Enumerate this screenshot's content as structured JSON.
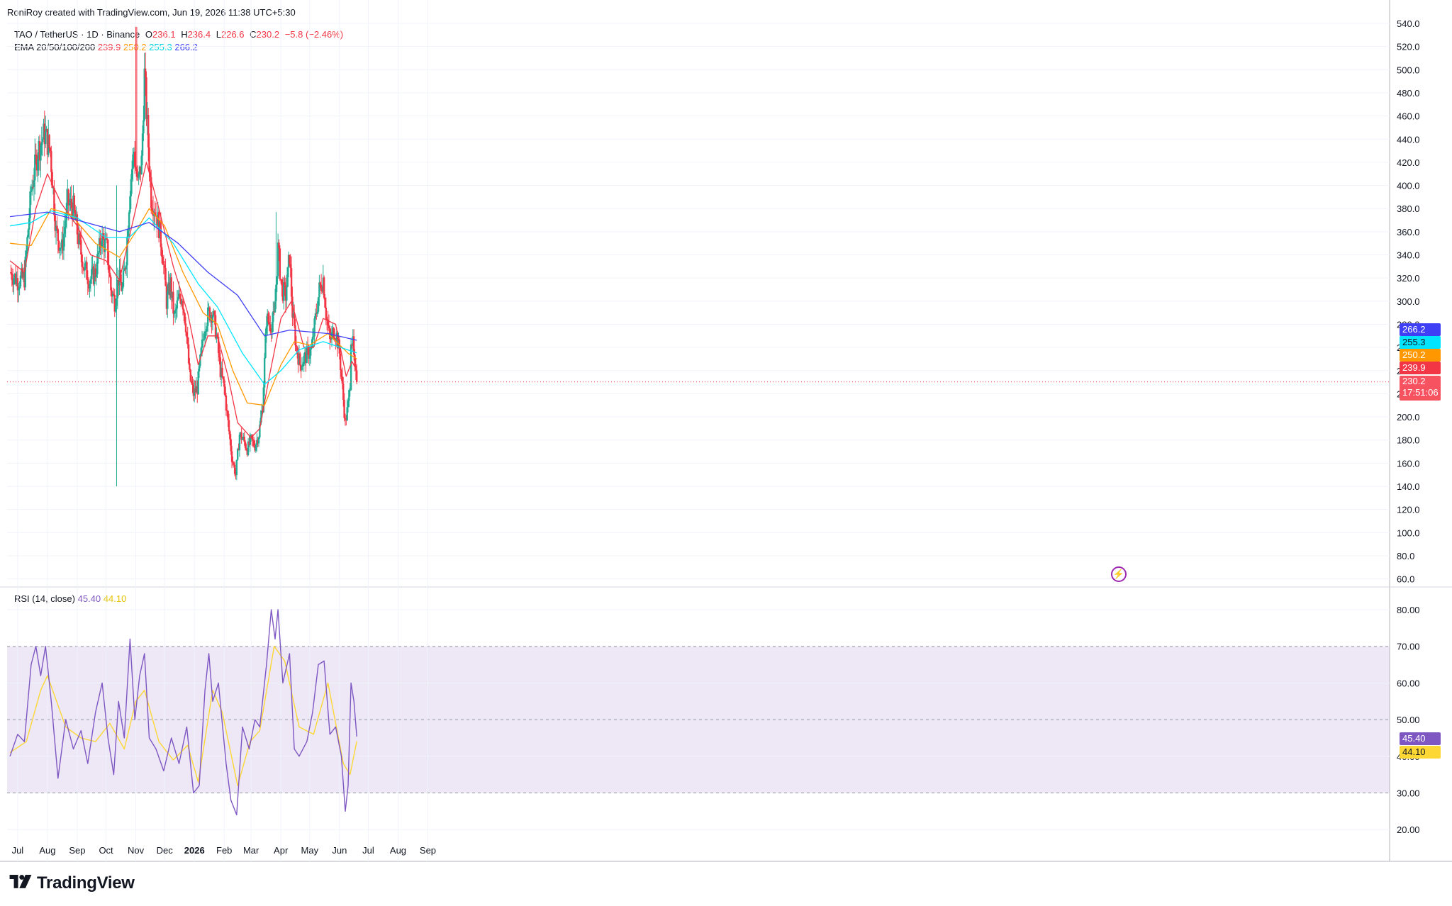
{
  "header": {
    "text": "RoniRoy created with TradingView.com, Jun 19, 2026 11:38 UTC+5:30"
  },
  "legend": {
    "symbol": "TAO / TetherUS · 1D · Binance",
    "open_label": "O",
    "open": "236.1",
    "high_label": "H",
    "high": "236.4",
    "low_label": "L",
    "low": "226.6",
    "close_label": "C",
    "close": "230.2",
    "change": "−5.8 (−2.46%)",
    "ema_title": "EMA 20/50/100/200",
    "ema20": "239.9",
    "ema50": "250.2",
    "ema100": "255.3",
    "ema200": "266.2"
  },
  "rsi_legend": {
    "title": "RSI (14, close)",
    "rsi": "45.40",
    "ma": "44.10"
  },
  "price_labels": {
    "ema200": "266.2",
    "ema100": "255.3",
    "ema50": "250.2",
    "ema20": "239.9",
    "last": "230.2",
    "countdown": "17:51:06"
  },
  "rsi_labels": {
    "rsi": "45.40",
    "ma": "44.10"
  },
  "brand": {
    "name": "TradingView"
  },
  "colors": {
    "up": "#22ab94",
    "down": "#f23645",
    "ema20": "#f23645",
    "ema50": "#ff9800",
    "ema100": "#00e5ff",
    "ema200": "#3f3ff5",
    "rsi": "#7e57c2",
    "rsi_ma": "#fdd835",
    "rsi_band": "#ede7f6"
  },
  "icons": {
    "flash": "flash-icon",
    "logo": "tradingview-logo-icon"
  },
  "chart_data": [
    {
      "type": "candlestick",
      "title": "TAO / TetherUS · 1D · Binance",
      "x_axis_labels": [
        "Jul",
        "Aug",
        "Sep",
        "Oct",
        "Nov",
        "Dec",
        "2026",
        "Feb",
        "Mar",
        "Apr",
        "May",
        "Jun",
        "Jul",
        "Aug",
        "Sep"
      ],
      "y_axis_labels": [
        "540.0",
        "520.0",
        "500.0",
        "480.0",
        "460.0",
        "440.0",
        "420.0",
        "400.0",
        "380.0",
        "360.0",
        "340.0",
        "320.0",
        "300.0",
        "280.0",
        "260.0",
        "240.0",
        "220.0",
        "200.0",
        "180.0",
        "160.0",
        "140.0",
        "120.0",
        "100.0",
        "80.0",
        "60.0"
      ],
      "ylim": [
        60,
        540
      ],
      "close_path": [
        [
          "Jun 23",
          325
        ],
        [
          "Jul 1",
          318
        ],
        [
          "Jul 8",
          320
        ],
        [
          "Jul 15",
          395
        ],
        [
          "Jul 22",
          430
        ],
        [
          "Jul 29",
          445
        ],
        [
          "Aug 4",
          430
        ],
        [
          "Aug 10",
          360
        ],
        [
          "Aug 16",
          345
        ],
        [
          "Aug 22",
          385
        ],
        [
          "Aug 28",
          380
        ],
        [
          "Sep 3",
          350
        ],
        [
          "Sep 8",
          330
        ],
        [
          "Sep 14",
          318
        ],
        [
          "Sep 20",
          325
        ],
        [
          "Sep 26",
          355
        ],
        [
          "Oct 2",
          345
        ],
        [
          "Oct 6",
          310
        ],
        [
          "Oct 10",
          300
        ],
        [
          "Oct 14",
          320
        ],
        [
          "Oct 18",
          310
        ],
        [
          "Oct 22",
          340
        ],
        [
          "Oct 26",
          400
        ],
        [
          "Oct 30",
          430
        ],
        [
          "Nov 3",
          400
        ],
        [
          "Nov 7",
          420
        ],
        [
          "Nov 10",
          495
        ],
        [
          "Nov 13",
          450
        ],
        [
          "Nov 17",
          390
        ],
        [
          "Nov 21",
          380
        ],
        [
          "Nov 25",
          365
        ],
        [
          "Nov 29",
          340
        ],
        [
          "Dec 3",
          300
        ],
        [
          "Dec 7",
          315
        ],
        [
          "Dec 11",
          285
        ],
        [
          "Dec 15",
          300
        ],
        [
          "Dec 19",
          305
        ],
        [
          "Dec 23",
          280
        ],
        [
          "Dec 27",
          235
        ],
        [
          "Dec 31",
          220
        ],
        [
          "Jan 4",
          225
        ],
        [
          "Jan 8",
          255
        ],
        [
          "Jan 12",
          280
        ],
        [
          "Jan 16",
          290
        ],
        [
          "Jan 20",
          290
        ],
        [
          "Jan 24",
          270
        ],
        [
          "Jan 28",
          240
        ],
        [
          "Feb 1",
          225
        ],
        [
          "Feb 5",
          195
        ],
        [
          "Feb 9",
          165
        ],
        [
          "Feb 13",
          150
        ],
        [
          "Feb 17",
          185
        ],
        [
          "Feb 21",
          180
        ],
        [
          "Feb 25",
          172
        ],
        [
          "Mar 1",
          180
        ],
        [
          "Mar 5",
          175
        ],
        [
          "Mar 9",
          185
        ],
        [
          "Mar 13",
          210
        ],
        [
          "Mar 17",
          285
        ],
        [
          "Mar 21",
          280
        ],
        [
          "Mar 25",
          285
        ],
        [
          "Mar 29",
          345
        ],
        [
          "Apr 2",
          310
        ],
        [
          "Apr 6",
          305
        ],
        [
          "Apr 10",
          340
        ],
        [
          "Apr 13",
          290
        ],
        [
          "Apr 17",
          260
        ],
        [
          "Apr 21",
          245
        ],
        [
          "Apr 25",
          250
        ],
        [
          "Apr 29",
          255
        ],
        [
          "May 3",
          258
        ],
        [
          "May 7",
          285
        ],
        [
          "May 11",
          310
        ],
        [
          "May 15",
          320
        ],
        [
          "May 18",
          290
        ],
        [
          "May 22",
          265
        ],
        [
          "May 26",
          275
        ],
        [
          "May 29",
          270
        ],
        [
          "Jun 1",
          255
        ],
        [
          "Jun 4",
          225
        ],
        [
          "Jun 7",
          195
        ],
        [
          "Jun 10",
          210
        ],
        [
          "Jun 12",
          230
        ],
        [
          "Jun 13",
          270
        ],
        [
          "Jun 15",
          262
        ],
        [
          "Jun 17",
          238
        ],
        [
          "Jun 19",
          230.2
        ]
      ],
      "spikes": [
        {
          "date": "Oct 12",
          "high": 400,
          "low": 140
        },
        {
          "date": "Nov 1",
          "high": 537
        },
        {
          "date": "Mar 27",
          "high": 377
        }
      ],
      "series": [
        {
          "name": "EMA 20",
          "values": [
            [
              "Jun 23",
              335
            ],
            [
              "Jul 8",
              325
            ],
            [
              "Jul 20",
              380
            ],
            [
              "Aug 1",
              410
            ],
            [
              "Aug 15",
              385
            ],
            [
              "Sep 1",
              365
            ],
            [
              "Sep 15",
              340
            ],
            [
              "Oct 1",
              335
            ],
            [
              "Oct 15",
              318
            ],
            [
              "Nov 1",
              380
            ],
            [
              "Nov 12",
              420
            ],
            [
              "Nov 25",
              380
            ],
            [
              "Dec 10",
              330
            ],
            [
              "Dec 25",
              290
            ],
            [
              "Jan 5",
              245
            ],
            [
              "Jan 15",
              270
            ],
            [
              "Jan 25",
              270
            ],
            [
              "Feb 5",
              235
            ],
            [
              "Feb 15",
              195
            ],
            [
              "Mar 1",
              182
            ],
            [
              "Mar 10",
              190
            ],
            [
              "Mar 20",
              235
            ],
            [
              "Apr 1",
              285
            ],
            [
              "Apr 12",
              300
            ],
            [
              "Apr 25",
              260
            ],
            [
              "May 5",
              260
            ],
            [
              "May 15",
              285
            ],
            [
              "May 28",
              280
            ],
            [
              "Jun 8",
              235
            ],
            [
              "Jun 14",
              248
            ],
            [
              "Jun 19",
              239.9
            ]
          ]
        },
        {
          "name": "EMA 50",
          "values": [
            [
              "Jun 23",
              350
            ],
            [
              "Jul 15",
              348
            ],
            [
              "Aug 5",
              380
            ],
            [
              "Aug 25",
              375
            ],
            [
              "Sep 20",
              350
            ],
            [
              "Oct 15",
              338
            ],
            [
              "Nov 1",
              360
            ],
            [
              "Nov 15",
              380
            ],
            [
              "Dec 1",
              365
            ],
            [
              "Dec 20",
              325
            ],
            [
              "Jan 10",
              290
            ],
            [
              "Jan 25",
              280
            ],
            [
              "Feb 10",
              240
            ],
            [
              "Feb 25",
              212
            ],
            [
              "Mar 15",
              210
            ],
            [
              "Apr 1",
              245
            ],
            [
              "Apr 15",
              265
            ],
            [
              "May 1",
              262
            ],
            [
              "May 20",
              272
            ],
            [
              "Jun 10",
              255
            ],
            [
              "Jun 19",
              250.2
            ]
          ]
        },
        {
          "name": "EMA 100",
          "values": [
            [
              "Jun 23",
              365
            ],
            [
              "Jul 15",
              368
            ],
            [
              "Aug 5",
              378
            ],
            [
              "Sep 1",
              372
            ],
            [
              "Oct 1",
              355
            ],
            [
              "Oct 25",
              355
            ],
            [
              "Nov 15",
              372
            ],
            [
              "Dec 10",
              350
            ],
            [
              "Jan 5",
              315
            ],
            [
              "Jan 25",
              295
            ],
            [
              "Feb 20",
              255
            ],
            [
              "Mar 15",
              228
            ],
            [
              "Apr 1",
              240
            ],
            [
              "Apr 20",
              258
            ],
            [
              "May 15",
              265
            ],
            [
              "Jun 19",
              255.3
            ]
          ]
        },
        {
          "name": "EMA 200",
          "values": [
            [
              "Jun 23",
              373
            ],
            [
              "Aug 1",
              377
            ],
            [
              "Sep 1",
              370
            ],
            [
              "Oct 15",
              360
            ],
            [
              "Nov 15",
              368
            ],
            [
              "Dec 15",
              350
            ],
            [
              "Jan 15",
              325
            ],
            [
              "Feb 15",
              305
            ],
            [
              "Mar 15",
              270
            ],
            [
              "Apr 10",
              275
            ],
            [
              "May 20",
              272
            ],
            [
              "Jun 19",
              266.2
            ]
          ]
        }
      ]
    },
    {
      "type": "line",
      "title": "RSI (14, close)",
      "y_axis_labels": [
        "80.00",
        "70.00",
        "60.00",
        "50.00",
        "40.00",
        "30.00",
        "20.00"
      ],
      "ylim": [
        20,
        80
      ],
      "band": [
        30,
        70
      ],
      "series": [
        {
          "name": "RSI",
          "values": [
            [
              "Jun 23",
              40
            ],
            [
              "Jul 1",
              46
            ],
            [
              "Jul 8",
              44
            ],
            [
              "Jul 15",
              65
            ],
            [
              "Jul 20",
              70
            ],
            [
              "Jul 25",
              62
            ],
            [
              "Jul 30",
              70
            ],
            [
              "Aug 5",
              55
            ],
            [
              "Aug 12",
              34
            ],
            [
              "Aug 20",
              50
            ],
            [
              "Aug 28",
              42
            ],
            [
              "Sep 5",
              47
            ],
            [
              "Sep 12",
              38
            ],
            [
              "Sep 20",
              52
            ],
            [
              "Sep 27",
              60
            ],
            [
              "Oct 3",
              45
            ],
            [
              "Oct 9",
              35
            ],
            [
              "Oct 14",
              55
            ],
            [
              "Oct 20",
              45
            ],
            [
              "Oct 26",
              72
            ],
            [
              "Oct 31",
              50
            ],
            [
              "Nov 5",
              62
            ],
            [
              "Nov 10",
              68
            ],
            [
              "Nov 15",
              45
            ],
            [
              "Nov 22",
              42
            ],
            [
              "Nov 30",
              36
            ],
            [
              "Dec 8",
              45
            ],
            [
              "Dec 16",
              38
            ],
            [
              "Dec 24",
              48
            ],
            [
              "Dec 31",
              30
            ],
            [
              "Jan 6",
              32
            ],
            [
              "Jan 12",
              58
            ],
            [
              "Jan 16",
              68
            ],
            [
              "Jan 20",
              55
            ],
            [
              "Jan 26",
              60
            ],
            [
              "Feb 3",
              38
            ],
            [
              "Feb 8",
              28
            ],
            [
              "Feb 14",
              24
            ],
            [
              "Feb 20",
              48
            ],
            [
              "Feb 27",
              42
            ],
            [
              "Mar 5",
              50
            ],
            [
              "Mar 10",
              48
            ],
            [
              "Mar 17",
              65
            ],
            [
              "Mar 22",
              80
            ],
            [
              "Mar 26",
              72
            ],
            [
              "Mar 29",
              80
            ],
            [
              "Apr 3",
              60
            ],
            [
              "Apr 10",
              68
            ],
            [
              "Apr 15",
              42
            ],
            [
              "Apr 20",
              40
            ],
            [
              "Apr 28",
              44
            ],
            [
              "May 4",
              52
            ],
            [
              "May 10",
              65
            ],
            [
              "May 16",
              66
            ],
            [
              "May 22",
              46
            ],
            [
              "May 28",
              48
            ],
            [
              "Jun 3",
              40
            ],
            [
              "Jun 7",
              25
            ],
            [
              "Jun 10",
              32
            ],
            [
              "Jun 13",
              60
            ],
            [
              "Jun 16",
              55
            ],
            [
              "Jun 19",
              45.4
            ]
          ]
        },
        {
          "name": "RSI-based MA",
          "values": [
            [
              "Jun 23",
              41
            ],
            [
              "Jul 10",
              44
            ],
            [
              "Jul 25",
              58
            ],
            [
              "Aug 1",
              62
            ],
            [
              "Aug 20",
              48
            ],
            [
              "Sep 5",
              45
            ],
            [
              "Sep 20",
              44
            ],
            [
              "Oct 5",
              49
            ],
            [
              "Oct 20",
              42
            ],
            [
              "Nov 1",
              55
            ],
            [
              "Nov 10",
              58
            ],
            [
              "Nov 25",
              44
            ],
            [
              "Dec 10",
              39
            ],
            [
              "Dec 25",
              43
            ],
            [
              "Jan 5",
              33
            ],
            [
              "Jan 20",
              58
            ],
            [
              "Jan 30",
              52
            ],
            [
              "Feb 15",
              32
            ],
            [
              "Feb 28",
              44
            ],
            [
              "Mar 10",
              47
            ],
            [
              "Mar 25",
              70
            ],
            [
              "Apr 5",
              66
            ],
            [
              "Apr 20",
              48
            ],
            [
              "May 5",
              46
            ],
            [
              "May 20",
              60
            ],
            [
              "Jun 5",
              38
            ],
            [
              "Jun 12",
              35
            ],
            [
              "Jun 19",
              44.1
            ]
          ]
        }
      ]
    }
  ]
}
